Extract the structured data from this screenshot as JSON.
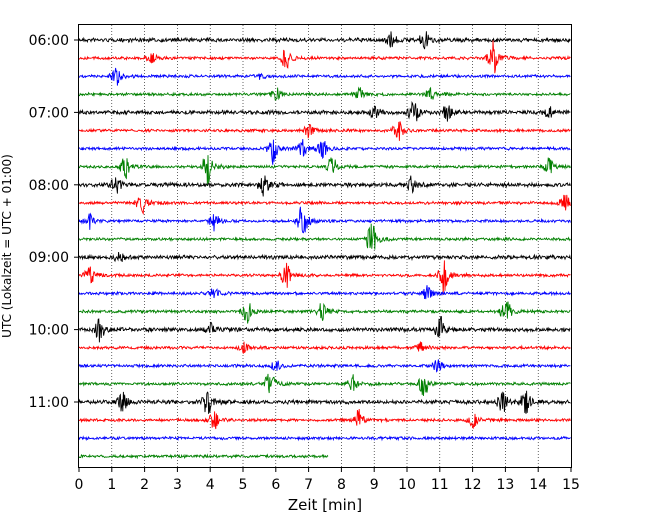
{
  "chart_data": {
    "type": "line",
    "title": "",
    "xlabel": "Zeit  [min]",
    "ylabel": "UTC (Lokalzeit = UTC + 01:00)",
    "xlim": [
      0,
      15
    ],
    "x_ticks": [
      "0",
      "1",
      "2",
      "3",
      "4",
      "5",
      "6",
      "7",
      "8",
      "9",
      "10",
      "11",
      "12",
      "13",
      "14",
      "15"
    ],
    "y_ticks": [
      "06:00",
      "07:00",
      "08:00",
      "09:00",
      "10:00",
      "11:00"
    ],
    "grid": "vertical dotted at each minute",
    "trace_interval_minutes": 15,
    "first_trace_start": "06:00",
    "last_trace_end_minute": 7.6,
    "trace_colors": [
      "#000000",
      "#ff0000",
      "#0000ff",
      "#008000"
    ],
    "traces": [
      {
        "start": "06:00",
        "color": "#000000",
        "events": [
          [
            9.5,
            6
          ],
          [
            10.5,
            8
          ]
        ]
      },
      {
        "start": "06:15",
        "color": "#ff0000",
        "events": [
          [
            2.2,
            4
          ],
          [
            6.3,
            9
          ],
          [
            12.6,
            15
          ]
        ]
      },
      {
        "start": "06:30",
        "color": "#0000ff",
        "events": [
          [
            1.1,
            8
          ],
          [
            5.5,
            3
          ]
        ]
      },
      {
        "start": "06:45",
        "color": "#008000",
        "events": [
          [
            6.0,
            5
          ],
          [
            8.5,
            6
          ],
          [
            10.7,
            5
          ]
        ]
      },
      {
        "start": "07:00",
        "color": "#000000",
        "events": [
          [
            9.0,
            5
          ],
          [
            10.2,
            10
          ],
          [
            11.2,
            6
          ],
          [
            14.3,
            5
          ]
        ]
      },
      {
        "start": "07:15",
        "color": "#ff0000",
        "events": [
          [
            7.0,
            7
          ],
          [
            9.7,
            9
          ]
        ]
      },
      {
        "start": "07:30",
        "color": "#0000ff",
        "events": [
          [
            5.9,
            12
          ],
          [
            6.8,
            7
          ],
          [
            7.4,
            8
          ]
        ]
      },
      {
        "start": "07:45",
        "color": "#008000",
        "events": [
          [
            1.4,
            10
          ],
          [
            3.9,
            14
          ],
          [
            7.7,
            9
          ],
          [
            14.3,
            7
          ]
        ]
      },
      {
        "start": "08:00",
        "color": "#000000",
        "events": [
          [
            1.1,
            7
          ],
          [
            5.6,
            10
          ],
          [
            10.1,
            6
          ]
        ]
      },
      {
        "start": "08:15",
        "color": "#ff0000",
        "events": [
          [
            1.9,
            10
          ],
          [
            14.8,
            7
          ]
        ]
      },
      {
        "start": "08:30",
        "color": "#0000ff",
        "events": [
          [
            0.3,
            6
          ],
          [
            4.1,
            7
          ],
          [
            6.8,
            16
          ]
        ]
      },
      {
        "start": "08:45",
        "color": "#008000",
        "events": [
          [
            8.9,
            14
          ]
        ]
      },
      {
        "start": "09:00",
        "color": "#000000",
        "events": [
          [
            1.2,
            4
          ]
        ]
      },
      {
        "start": "09:15",
        "color": "#ff0000",
        "events": [
          [
            0.3,
            8
          ],
          [
            6.3,
            10
          ],
          [
            11.1,
            14
          ]
        ]
      },
      {
        "start": "09:30",
        "color": "#0000ff",
        "events": [
          [
            4.1,
            5
          ],
          [
            10.6,
            6
          ]
        ]
      },
      {
        "start": "09:45",
        "color": "#008000",
        "events": [
          [
            5.1,
            10
          ],
          [
            7.4,
            8
          ],
          [
            13.0,
            12
          ]
        ]
      },
      {
        "start": "10:00",
        "color": "#000000",
        "events": [
          [
            0.6,
            9
          ],
          [
            4.0,
            5
          ],
          [
            11.0,
            10
          ]
        ]
      },
      {
        "start": "10:15",
        "color": "#ff0000",
        "events": [
          [
            5.0,
            4
          ],
          [
            10.4,
            4
          ]
        ]
      },
      {
        "start": "10:30",
        "color": "#0000ff",
        "events": [
          [
            6.0,
            4
          ],
          [
            10.9,
            5
          ]
        ]
      },
      {
        "start": "10:45",
        "color": "#008000",
        "events": [
          [
            5.8,
            12
          ],
          [
            8.3,
            8
          ],
          [
            10.5,
            11
          ]
        ]
      },
      {
        "start": "11:00",
        "color": "#000000",
        "events": [
          [
            1.3,
            8
          ],
          [
            3.9,
            12
          ],
          [
            12.9,
            10
          ],
          [
            13.6,
            9
          ]
        ]
      },
      {
        "start": "11:15",
        "color": "#ff0000",
        "events": [
          [
            4.1,
            8
          ],
          [
            8.5,
            9
          ],
          [
            12.0,
            6
          ]
        ]
      },
      {
        "start": "11:30",
        "color": "#0000ff",
        "events": []
      },
      {
        "start": "11:45",
        "color": "#008000",
        "events": []
      }
    ]
  }
}
